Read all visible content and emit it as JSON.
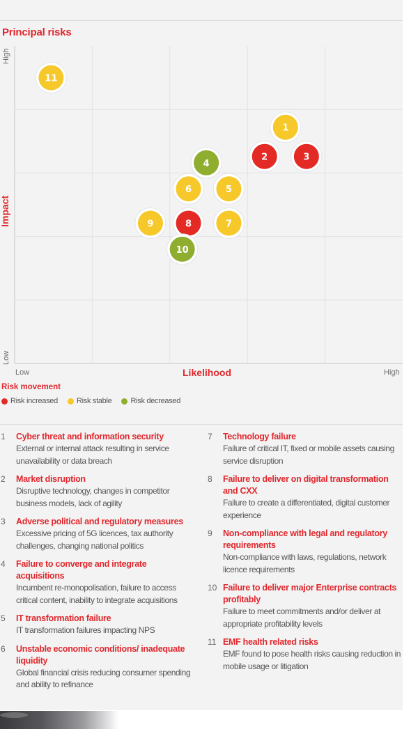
{
  "chart_data": {
    "type": "scatter",
    "title": "Principal risks",
    "xlabel": "Likelihood",
    "ylabel": "Impact",
    "x_ticks": {
      "low": "Low",
      "high": "High"
    },
    "y_ticks": {
      "low": "Low",
      "high": "High"
    },
    "xlim": [
      0,
      5
    ],
    "ylim": [
      0,
      5
    ],
    "grid": true,
    "grid_divisions": 5,
    "legend_title": "Risk movement",
    "legend_placement": "bottom-left",
    "legend": [
      {
        "key": "increased",
        "label": "Risk increased",
        "color": "#e42a25"
      },
      {
        "key": "stable",
        "label": "Risk stable",
        "color": "#f7c82a"
      },
      {
        "key": "decreased",
        "label": "Risk decreased",
        "color": "#8fad2e"
      }
    ],
    "points": [
      {
        "id": "1",
        "x": 3.49,
        "y": 3.72,
        "movement": "stable"
      },
      {
        "id": "2",
        "x": 3.22,
        "y": 3.26,
        "movement": "increased"
      },
      {
        "id": "3",
        "x": 3.76,
        "y": 3.26,
        "movement": "increased"
      },
      {
        "id": "4",
        "x": 2.47,
        "y": 3.16,
        "movement": "decreased"
      },
      {
        "id": "5",
        "x": 2.76,
        "y": 2.75,
        "movement": "stable"
      },
      {
        "id": "6",
        "x": 2.24,
        "y": 2.75,
        "movement": "stable"
      },
      {
        "id": "7",
        "x": 2.76,
        "y": 2.21,
        "movement": "stable"
      },
      {
        "id": "8",
        "x": 2.24,
        "y": 2.21,
        "movement": "increased"
      },
      {
        "id": "9",
        "x": 1.75,
        "y": 2.21,
        "movement": "stable"
      },
      {
        "id": "10",
        "x": 2.16,
        "y": 1.8,
        "movement": "decreased"
      },
      {
        "id": "11",
        "x": 0.47,
        "y": 4.5,
        "movement": "stable"
      }
    ]
  },
  "risks": [
    {
      "num": "1",
      "title": "Cyber threat and information security",
      "desc": "External or internal attack resulting in service unavailability or data breach"
    },
    {
      "num": "2",
      "title": "Market disruption",
      "desc": "Disruptive technology, changes in competitor business models, lack of agility"
    },
    {
      "num": "3",
      "title": "Adverse political and regulatory measures",
      "desc": "Excessive pricing of 5G licences, tax authority challenges, changing national politics"
    },
    {
      "num": "4",
      "title": "Failure to converge and integrate acquisitions",
      "desc": "Incumbent re-monopolisation, failure to access critical content, inability to integrate acquisitions"
    },
    {
      "num": "5",
      "title": "IT transformation failure",
      "desc": "IT transformation failures impacting NPS"
    },
    {
      "num": "6",
      "title": "Unstable economic conditions/ inadequate liquidity",
      "desc": "Global financial crisis reducing consumer spending and ability to refinance"
    },
    {
      "num": "7",
      "title": "Technology failure",
      "desc": "Failure of critical IT, fixed or mobile assets causing service disruption"
    },
    {
      "num": "8",
      "title": "Failure to deliver on digital transformation and CXX",
      "desc": "Failure to create a differentiated, digital customer experience"
    },
    {
      "num": "9",
      "title": "Non-compliance with legal and regulatory requirements",
      "desc": "Non-compliance with laws, regulations, network licence requirements"
    },
    {
      "num": "10",
      "title": "Failure to deliver major Enterprise contracts profitably",
      "desc": "Failure to meet commitments and/or deliver at appropriate profitability levels"
    },
    {
      "num": "11",
      "title": "EMF health related risks",
      "desc": "EMF found to pose health risks causing reduction in mobile usage or litigation"
    }
  ]
}
